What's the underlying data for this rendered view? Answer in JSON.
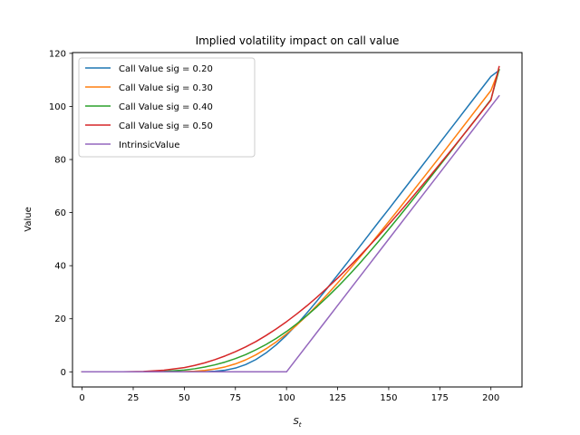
{
  "chart_data": {
    "type": "line",
    "title": "Implied volatility impact on call value",
    "xlabel": "S",
    "xlabel_subscript": "t",
    "ylabel": "Value",
    "xlim": [
      -4.7,
      215.2
    ],
    "ylim": [
      -5.7,
      120.3
    ],
    "xticks": [
      0,
      25,
      50,
      75,
      100,
      125,
      150,
      175,
      200
    ],
    "yticks": [
      0,
      20,
      40,
      60,
      80,
      100,
      120
    ],
    "grid": false,
    "legend_position": "upper-left",
    "x": [
      0,
      10,
      20,
      30,
      40,
      50,
      55,
      60,
      65,
      70,
      75,
      80,
      85,
      90,
      95,
      100,
      105,
      110,
      115,
      120,
      125,
      130,
      135,
      140,
      145,
      150,
      155,
      160,
      165,
      170,
      175,
      180,
      185,
      190,
      195,
      200,
      204
    ],
    "series": [
      {
        "name": "Call Value sig = 0.20",
        "color": "#1f77b4",
        "values": [
          0,
          0,
          0,
          0,
          0,
          0,
          0.01,
          0.06,
          0.22,
          0.63,
          1.42,
          2.73,
          4.63,
          7.13,
          10.2,
          13.8,
          17.8,
          22.2,
          26.8,
          31.6,
          36.5,
          41.4,
          46.4,
          51.4,
          56.4,
          61.3,
          66.3,
          71.3,
          76.3,
          81.3,
          86.3,
          91.3,
          96.3,
          101.3,
          106.3,
          111.3,
          113.6
        ]
      },
      {
        "name": "Call Value sig = 0.30",
        "color": "#ff7f0e",
        "values": [
          0,
          0,
          0,
          0,
          0.01,
          0.1,
          0.25,
          0.55,
          1.07,
          1.87,
          3.0,
          4.5,
          6.4,
          8.7,
          11.3,
          14.3,
          17.6,
          21.2,
          25.1,
          29.2,
          33.5,
          37.9,
          42.4,
          47.0,
          51.8,
          56.6,
          61.4,
          66.3,
          71.2,
          76.1,
          81.0,
          86.0,
          91.0,
          96.0,
          101.0,
          106.0,
          113.9
        ]
      },
      {
        "name": "Call Value sig = 0.40",
        "color": "#2ca02c",
        "values": [
          0,
          0,
          0,
          0.02,
          0.17,
          0.68,
          1.15,
          1.8,
          2.65,
          3.7,
          5.0,
          6.5,
          8.3,
          10.3,
          12.6,
          15.2,
          18.1,
          21.2,
          24.6,
          28.2,
          32.0,
          36.0,
          40.2,
          44.6,
          49.1,
          53.7,
          58.4,
          63.2,
          68.0,
          72.9,
          77.8,
          82.7,
          87.7,
          92.7,
          97.6,
          102.6,
          113.9
        ]
      },
      {
        "name": "Call Value sig = 0.50",
        "color": "#d62728",
        "values": [
          0,
          0,
          0.01,
          0.15,
          0.6,
          1.6,
          2.4,
          3.4,
          4.6,
          6.0,
          7.6,
          9.4,
          11.4,
          13.7,
          16.2,
          18.9,
          21.8,
          24.9,
          28.2,
          31.7,
          35.3,
          39.1,
          43.0,
          47.1,
          51.2,
          55.5,
          59.9,
          64.4,
          69.0,
          73.6,
          78.3,
          83.0,
          87.8,
          92.6,
          97.5,
          102.4,
          115.0
        ]
      },
      {
        "name": "IntrinsicValue",
        "color": "#9467bd",
        "values": [
          0,
          0,
          0,
          0,
          0,
          0,
          0,
          0,
          0,
          0,
          0,
          0,
          0,
          0,
          0,
          0,
          5,
          10,
          15,
          20,
          25,
          30,
          35,
          40,
          45,
          50,
          55,
          60,
          65,
          70,
          75,
          80,
          85,
          90,
          95,
          100,
          104
        ]
      }
    ]
  }
}
